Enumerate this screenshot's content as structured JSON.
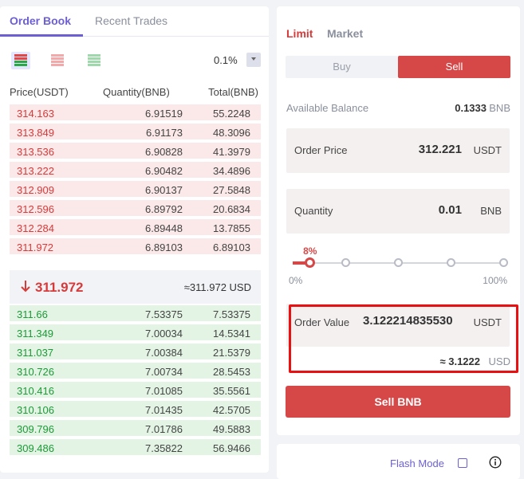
{
  "orderbook": {
    "tabs": [
      {
        "label": "Order Book",
        "active": true
      },
      {
        "label": "Recent Trades",
        "active": false
      }
    ],
    "views": [
      "both-sides-icon",
      "asks-only-icon",
      "bids-only-icon"
    ],
    "precision": "0.1%",
    "headers": {
      "price": "Price(USDT)",
      "quantity": "Quantity(BNB)",
      "total": "Total(BNB)"
    },
    "asks": [
      {
        "price": "314.163",
        "qty": "6.91519",
        "total": "55.2248",
        "depth": 1.0
      },
      {
        "price": "313.849",
        "qty": "6.91173",
        "total": "48.3096",
        "depth": 1.0
      },
      {
        "price": "313.536",
        "qty": "6.90828",
        "total": "41.3979",
        "depth": 1.0
      },
      {
        "price": "313.222",
        "qty": "6.90482",
        "total": "34.4896",
        "depth": 1.0
      },
      {
        "price": "312.909",
        "qty": "6.90137",
        "total": "27.5848",
        "depth": 1.0
      },
      {
        "price": "312.596",
        "qty": "6.89792",
        "total": "20.6834",
        "depth": 1.0
      },
      {
        "price": "312.284",
        "qty": "6.89448",
        "total": "13.7855",
        "depth": 1.0
      },
      {
        "price": "311.972",
        "qty": "6.89103",
        "total": "6.89103",
        "depth": 1.0
      }
    ],
    "mid": {
      "price": "311.972",
      "usd": "≈311.972 USD",
      "color": "#d63a3a"
    },
    "bids": [
      {
        "price": "311.66",
        "qty": "7.53375",
        "total": "7.53375",
        "depth": 1.0
      },
      {
        "price": "311.349",
        "qty": "7.00034",
        "total": "14.5341",
        "depth": 1.0
      },
      {
        "price": "311.037",
        "qty": "7.00384",
        "total": "21.5379",
        "depth": 1.0
      },
      {
        "price": "310.726",
        "qty": "7.00734",
        "total": "28.5453",
        "depth": 1.0
      },
      {
        "price": "310.416",
        "qty": "7.01085",
        "total": "35.5561",
        "depth": 1.0
      },
      {
        "price": "310.106",
        "qty": "7.01435",
        "total": "42.5705",
        "depth": 1.0
      },
      {
        "price": "309.796",
        "qty": "7.01786",
        "total": "49.5883",
        "depth": 1.0
      },
      {
        "price": "309.486",
        "qty": "7.35822",
        "total": "56.9466",
        "depth": 1.0
      }
    ]
  },
  "trade": {
    "order_types": {
      "limit": "Limit",
      "market": "Market",
      "active": "limit"
    },
    "side": {
      "buy": "Buy",
      "sell": "Sell",
      "active": "sell"
    },
    "available": {
      "label": "Available Balance",
      "value": "0.1333",
      "unit": "BNB"
    },
    "order_price": {
      "label": "Order Price",
      "value": "312.221",
      "unit": "USDT"
    },
    "quantity": {
      "label": "Quantity",
      "value": "0.01",
      "unit": "BNB"
    },
    "slider": {
      "percent": 8,
      "percent_label": "8%",
      "min_label": "0%",
      "max_label": "100%",
      "stops": [
        0,
        25,
        50,
        75,
        100
      ]
    },
    "order_value": {
      "label": "Order Value",
      "value": "3.122214835530",
      "unit": "USDT"
    },
    "approx": {
      "value": "≈ 3.1222",
      "unit": "USD"
    },
    "submit_label": "Sell BNB",
    "colors": {
      "accent": "#6c5fd4",
      "sell": "#d64848",
      "buy": "#1c9a36"
    }
  },
  "footer": {
    "flash_mode_label": "Flash Mode",
    "flash_mode_checked": false
  }
}
